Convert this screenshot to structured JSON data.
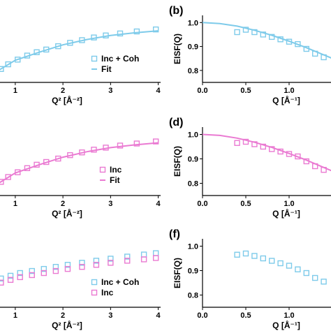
{
  "colors": {
    "coh": "#7ecbea",
    "inc": "#ea7ad2",
    "axis": "#000000"
  },
  "chart_data": [
    {
      "panel": "a",
      "type": "scatter",
      "label": "",
      "xlabel": "Q² [Å⁻²]",
      "ylabel": "",
      "xticks": [
        "1",
        "2",
        "3",
        "4"
      ],
      "yticks": [],
      "xlim": [
        0.65,
        4.05
      ],
      "ylim": [
        0,
        1
      ],
      "series": [
        {
          "name": "Inc + Coh",
          "kind": "marker",
          "color": "coh",
          "x": [
            0.7,
            0.85,
            1.05,
            1.25,
            1.45,
            1.65,
            1.9,
            2.15,
            2.4,
            2.65,
            2.9,
            3.2,
            3.55,
            3.95
          ],
          "y": [
            0.2,
            0.27,
            0.34,
            0.4,
            0.45,
            0.49,
            0.54,
            0.59,
            0.63,
            0.67,
            0.7,
            0.73,
            0.76,
            0.79
          ]
        },
        {
          "name": "Fit",
          "kind": "line",
          "color": "coh",
          "x": [
            0.65,
            1.0,
            1.5,
            2.0,
            2.5,
            3.0,
            3.5,
            4.0
          ],
          "y": [
            0.18,
            0.33,
            0.45,
            0.56,
            0.64,
            0.7,
            0.74,
            0.77
          ]
        }
      ],
      "legend": {
        "placement": "lower-center",
        "entries": [
          "Inc + Coh",
          "Fit"
        ]
      }
    },
    {
      "panel": "b",
      "type": "scatter",
      "label": "(b)",
      "xlabel": "Q [Å⁻¹]",
      "ylabel": "EISF(Q)",
      "xticks": [
        "0.0",
        "0.5",
        "1.0"
      ],
      "yticks": [
        "0.8",
        "0.9",
        "1.0"
      ],
      "xlim": [
        0,
        1.5
      ],
      "ylim": [
        0.75,
        1.03
      ],
      "series": [
        {
          "name": "Inc + Coh",
          "kind": "marker",
          "color": "coh",
          "x": [
            0.4,
            0.5,
            0.6,
            0.7,
            0.8,
            0.9,
            1.0,
            1.1,
            1.2,
            1.3,
            1.4
          ],
          "y": [
            0.96,
            0.97,
            0.96,
            0.95,
            0.94,
            0.93,
            0.92,
            0.91,
            0.89,
            0.87,
            0.855
          ]
        },
        {
          "name": "Fit",
          "kind": "line",
          "color": "coh",
          "x": [
            0,
            0.2,
            0.4,
            0.6,
            0.8,
            1.0,
            1.2,
            1.4,
            1.5
          ],
          "y": [
            1.0,
            0.996,
            0.985,
            0.968,
            0.947,
            0.922,
            0.895,
            0.865,
            0.85
          ]
        }
      ]
    },
    {
      "panel": "c",
      "type": "scatter",
      "label": "",
      "xlabel": "Q² [Å⁻²]",
      "ylabel": "",
      "xticks": [
        "1",
        "2",
        "3",
        "4"
      ],
      "yticks": [],
      "xlim": [
        0.65,
        4.05
      ],
      "ylim": [
        0,
        1
      ],
      "series": [
        {
          "name": "Inc",
          "kind": "marker",
          "color": "inc",
          "x": [
            0.7,
            0.85,
            1.05,
            1.25,
            1.45,
            1.65,
            1.9,
            2.15,
            2.4,
            2.65,
            2.9,
            3.2,
            3.55,
            3.95
          ],
          "y": [
            0.2,
            0.27,
            0.34,
            0.4,
            0.45,
            0.49,
            0.54,
            0.59,
            0.63,
            0.67,
            0.7,
            0.73,
            0.76,
            0.79
          ]
        },
        {
          "name": "Fit",
          "kind": "line",
          "color": "inc",
          "x": [
            0.65,
            1.0,
            1.5,
            2.0,
            2.5,
            3.0,
            3.5,
            4.0
          ],
          "y": [
            0.18,
            0.33,
            0.45,
            0.56,
            0.64,
            0.7,
            0.74,
            0.77
          ]
        }
      ],
      "legend": {
        "placement": "lower-center",
        "entries": [
          "Inc",
          "Fit"
        ]
      }
    },
    {
      "panel": "d",
      "type": "scatter",
      "label": "(d)",
      "xlabel": "Q [Å⁻¹]",
      "ylabel": "EISF(Q)",
      "xticks": [
        "0.0",
        "0.5",
        "1.0"
      ],
      "yticks": [
        "0.8",
        "0.9",
        "1.0"
      ],
      "xlim": [
        0,
        1.5
      ],
      "ylim": [
        0.75,
        1.03
      ],
      "series": [
        {
          "name": "Inc",
          "kind": "marker",
          "color": "inc",
          "x": [
            0.4,
            0.5,
            0.6,
            0.7,
            0.8,
            0.9,
            1.0,
            1.1,
            1.2,
            1.3,
            1.4
          ],
          "y": [
            0.965,
            0.97,
            0.96,
            0.95,
            0.94,
            0.93,
            0.92,
            0.91,
            0.89,
            0.87,
            0.855
          ]
        },
        {
          "name": "Fit",
          "kind": "line",
          "color": "inc",
          "x": [
            0,
            0.2,
            0.4,
            0.6,
            0.8,
            1.0,
            1.2,
            1.4,
            1.5
          ],
          "y": [
            1.0,
            0.996,
            0.985,
            0.968,
            0.947,
            0.922,
            0.895,
            0.865,
            0.85
          ]
        }
      ]
    },
    {
      "panel": "e",
      "type": "scatter",
      "label": "",
      "xlabel": "Q² [Å⁻²]",
      "ylabel": "",
      "xticks": [
        "1",
        "2",
        "3",
        "4"
      ],
      "yticks": [],
      "xlim": [
        0.65,
        4.05
      ],
      "ylim": [
        0,
        1
      ],
      "series": [
        {
          "name": "Inc + Coh",
          "kind": "marker",
          "color": "coh",
          "x": [
            0.7,
            0.9,
            1.1,
            1.35,
            1.6,
            1.85,
            2.1,
            2.4,
            2.7,
            3.0,
            3.35,
            3.7,
            3.95
          ],
          "y": [
            0.42,
            0.46,
            0.5,
            0.53,
            0.56,
            0.59,
            0.62,
            0.65,
            0.68,
            0.71,
            0.74,
            0.77,
            0.79
          ]
        },
        {
          "name": "Inc",
          "kind": "marker",
          "color": "inc",
          "x": [
            0.7,
            0.9,
            1.1,
            1.35,
            1.6,
            1.85,
            2.1,
            2.4,
            2.7,
            3.0,
            3.35,
            3.7,
            3.95
          ],
          "y": [
            0.36,
            0.4,
            0.44,
            0.47,
            0.5,
            0.53,
            0.56,
            0.59,
            0.62,
            0.65,
            0.68,
            0.7,
            0.72
          ]
        }
      ],
      "legend": {
        "placement": "lower-center",
        "entries": [
          "Inc + Coh",
          "Inc"
        ]
      }
    },
    {
      "panel": "f",
      "type": "scatter",
      "label": "(f)",
      "xlabel": "Q [Å⁻¹]",
      "ylabel": "EISF(Q)",
      "xticks": [
        "0.0",
        "0.5",
        "1.0"
      ],
      "yticks": [
        "0.8",
        "0.9",
        "1.0"
      ],
      "xlim": [
        0,
        1.5
      ],
      "ylim": [
        0.75,
        1.03
      ],
      "series": [
        {
          "name": "Inc + Coh",
          "kind": "marker",
          "color": "coh",
          "x": [
            0.4,
            0.5,
            0.6,
            0.7,
            0.8,
            0.9,
            1.0,
            1.1,
            1.2,
            1.3,
            1.4
          ],
          "y": [
            0.965,
            0.97,
            0.96,
            0.95,
            0.94,
            0.93,
            0.92,
            0.905,
            0.89,
            0.87,
            0.855
          ]
        }
      ]
    }
  ]
}
